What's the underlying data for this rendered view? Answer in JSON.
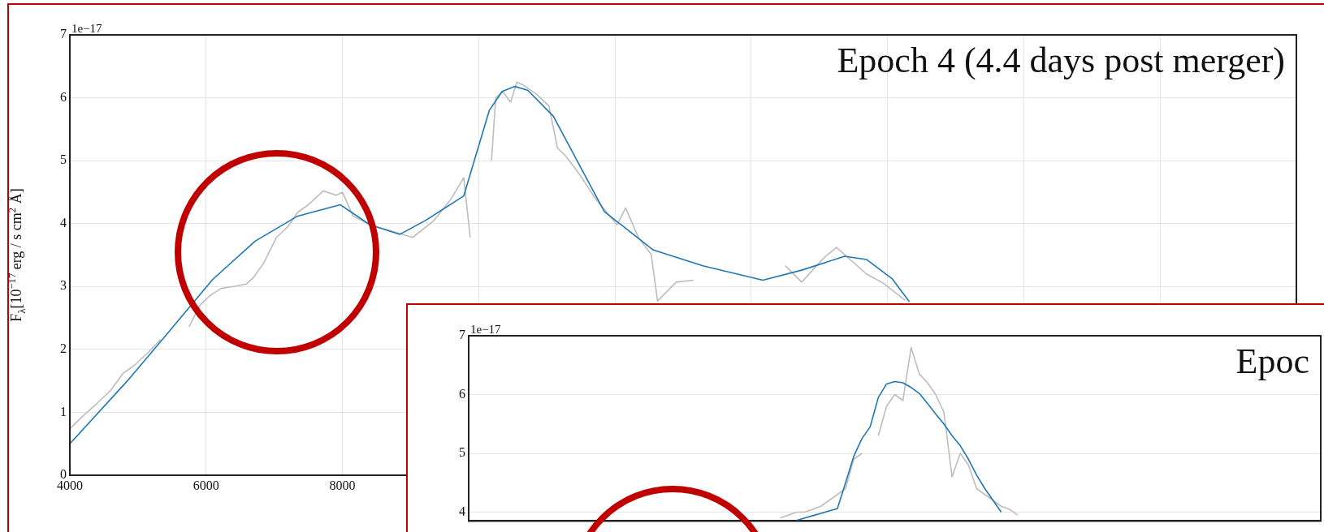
{
  "chart_data": [
    {
      "type": "line",
      "title": "Epoch 4 (4.4 days post merger)",
      "ylabel": "F$_{λ}$[10$^{−17}$ erg / s cm$^{2}$ Å]",
      "annotations": [
        "1e−17"
      ],
      "xlim": [
        4000,
        22000
      ],
      "xticks": [
        4000,
        6000,
        8000,
        {
          "value": 10000,
          "label": null
        },
        {
          "value": 12000,
          "label": null
        },
        {
          "value": 14000,
          "label": null
        },
        {
          "value": 16000,
          "label": null
        },
        {
          "value": 18000,
          "label": null
        },
        {
          "value": 20000,
          "label": null
        },
        {
          "value": 22000,
          "label": null
        }
      ],
      "ylim": [
        0,
        7
      ],
      "yticks": [
        0,
        1,
        2,
        3,
        4,
        5,
        6,
        7
      ],
      "grid": true,
      "legend": false,
      "marker": "none",
      "line_style": "solid",
      "series": [
        {
          "color": "#bdbdbd",
          "x": [
            4000,
            4200,
            4406,
            4600,
            4781,
            4950,
            5156,
            5331,
            5500,
            5750,
            5906,
            6050,
            6219,
            6400,
            6594,
            6700,
            6844,
            7031,
            7200,
            7344,
            7500,
            7719,
            7906,
            8000,
            8156,
            8406,
            8719,
            9031,
            9344,
            9594,
            9781,
            9875,
            10000,
            10188,
            10250,
            10350,
            10469,
            10560,
            10656,
            10844,
            11031,
            11156,
            11281,
            11469,
            11719,
            12031,
            12156,
            12344,
            12531,
            12625,
            12900,
            13150,
            13800,
            14500,
            14740,
            15060,
            15250,
            15430,
            15690,
            15940,
            16260
          ],
          "values": [
            0.74,
            0.95,
            1.15,
            1.35,
            1.62,
            1.75,
            1.96,
            2.16,
            null,
            2.36,
            2.7,
            2.85,
            2.97,
            3.0,
            3.04,
            3.15,
            3.37,
            3.78,
            3.95,
            4.18,
            4.3,
            4.52,
            4.45,
            4.5,
            4.12,
            3.98,
            3.88,
            3.78,
            4.05,
            4.39,
            4.73,
            3.78,
            null,
            5.0,
            6.0,
            6.1,
            5.93,
            6.25,
            6.2,
            6.06,
            5.87,
            5.2,
            5.07,
            4.8,
            4.39,
            3.98,
            4.25,
            3.78,
            3.51,
            2.77,
            3.07,
            3.1,
            null,
            3.33,
            3.07,
            3.45,
            3.62,
            3.45,
            3.2,
            3.05,
            2.78
          ]
        },
        {
          "color": "#1f77b4",
          "x": [
            4000,
            4844,
            5469,
            6094,
            6719,
            7344,
            7969,
            8406,
            8844,
            9219,
            9781,
            10156,
            10344,
            10531,
            10719,
            11094,
            11844,
            12563,
            13290,
            14170,
            14740,
            15370,
            15690,
            16070,
            16320
          ],
          "values": [
            0.5,
            1.5,
            2.3,
            3.11,
            3.72,
            4.12,
            4.3,
            3.98,
            3.83,
            4.05,
            4.44,
            5.8,
            6.1,
            6.18,
            6.12,
            5.71,
            4.19,
            3.58,
            3.33,
            3.1,
            3.26,
            3.48,
            3.43,
            3.12,
            2.76
          ]
        }
      ]
    },
    {
      "type": "line",
      "title": "Epoc",
      "annotations": [
        "1e−17"
      ],
      "categories": [
        null,
        null,
        null,
        null,
        null,
        null,
        null,
        null,
        null,
        null,
        null,
        null,
        null,
        null,
        null,
        null,
        null,
        null,
        null,
        null,
        null,
        null,
        null,
        null,
        null,
        null,
        null,
        null,
        null,
        null,
        null,
        null,
        null,
        null,
        null,
        null,
        null,
        null,
        null,
        null,
        null,
        null,
        null,
        null,
        null,
        null,
        null,
        null,
        null,
        null,
        null,
        null,
        null,
        null,
        null,
        null,
        null,
        null,
        null,
        null,
        null,
        null,
        null,
        null,
        null,
        null,
        null,
        null,
        null,
        null,
        null,
        null,
        null,
        null,
        null,
        null,
        null,
        null,
        null,
        null,
        null,
        null,
        null,
        null,
        null,
        null,
        null,
        null,
        null,
        null,
        null,
        null,
        null,
        null,
        null,
        null,
        null,
        null,
        null,
        null,
        null,
        null,
        null,
        null,
        null
      ],
      "ylim": [
        3.85,
        7
      ],
      "yticks": [
        4,
        5,
        6,
        7
      ],
      "grid": "y",
      "legend": false,
      "marker": "none",
      "line_style": "solid",
      "series": [
        {
          "color": "#bdbdbd",
          "values": [
            null,
            null,
            null,
            null,
            null,
            null,
            null,
            null,
            null,
            null,
            null,
            null,
            null,
            null,
            null,
            null,
            null,
            null,
            null,
            null,
            null,
            null,
            null,
            null,
            null,
            null,
            null,
            null,
            null,
            null,
            null,
            null,
            null,
            null,
            null,
            null,
            null,
            null,
            3.9,
            3.95,
            4.0,
            4.0,
            4.05,
            4.1,
            4.2,
            4.3,
            4.4,
            4.9,
            5.0,
            null,
            5.3,
            5.8,
            6.0,
            5.9,
            6.8,
            6.35,
            6.2,
            6.0,
            5.7,
            4.6,
            5.0,
            4.8,
            4.4,
            4.3,
            4.2,
            4.1,
            4.05,
            3.95,
            null,
            null,
            null,
            null,
            null,
            null,
            null,
            null,
            null,
            null,
            null,
            null,
            null,
            null,
            null,
            null,
            null,
            null,
            null,
            null,
            null,
            null,
            null,
            null,
            null,
            null,
            null,
            null,
            null,
            null,
            null,
            null,
            null,
            null,
            null,
            null,
            null
          ]
        },
        {
          "color": "#1f77b4",
          "values": [
            null,
            null,
            null,
            null,
            null,
            null,
            null,
            null,
            null,
            null,
            null,
            null,
            null,
            null,
            null,
            null,
            null,
            null,
            null,
            null,
            null,
            null,
            null,
            null,
            null,
            null,
            null,
            null,
            null,
            null,
            null,
            null,
            null,
            null,
            null,
            null,
            null,
            null,
            null,
            null,
            3.86,
            3.9,
            3.94,
            3.98,
            4.02,
            4.06,
            4.5,
            4.95,
            5.25,
            5.45,
            5.95,
            6.18,
            6.22,
            6.2,
            6.12,
            6.02,
            5.85,
            5.67,
            5.5,
            5.3,
            5.13,
            4.9,
            4.63,
            4.4,
            4.2,
            4.0,
            null,
            null,
            null,
            null,
            null,
            null,
            null,
            null,
            null,
            null,
            null,
            null,
            null,
            null,
            null,
            null,
            null,
            null,
            null,
            null,
            null,
            null,
            null,
            null,
            null,
            null,
            null,
            null,
            null,
            null,
            null,
            null,
            null,
            null,
            null,
            null,
            null,
            null,
            null
          ]
        }
      ]
    }
  ]
}
